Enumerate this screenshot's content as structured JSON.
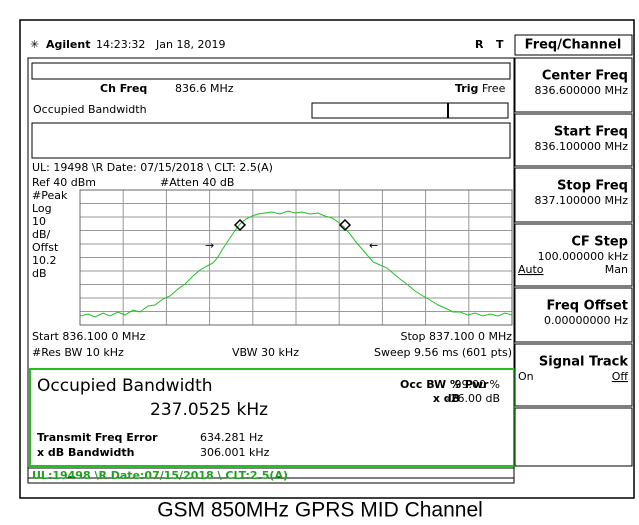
{
  "header": {
    "brand": "Agilent",
    "time": "14:23:32",
    "date": "Jan 18, 2019",
    "r": "R",
    "t": "T",
    "menu": "Freq/Channel"
  },
  "display": {
    "ch_freq_label": "Ch Freq",
    "ch_freq": "836.6 MHz",
    "trig_label": "Trig",
    "trig": "Free",
    "mode": "Occupied Bandwidth",
    "note": "UL: 19498 \\R Date: 07/15/2018 \\ CLT: 2.5(A)",
    "ref": "Ref 40 dBm",
    "atten": "#Atten 40 dB",
    "scale": [
      "#Peak",
      "Log",
      "10",
      "dB/",
      "Offst",
      "10.2",
      "dB"
    ],
    "start": "Start 836.100 0 MHz",
    "stop": "Stop 837.100 0 MHz",
    "res_bw": "#Res BW 10 kHz",
    "vbw": "VBW 30 kHz",
    "sweep": "Sweep 9.56 ms (601 pts)"
  },
  "results": {
    "title": "Occupied Bandwidth",
    "obw": "237.0525 kHz",
    "pwr_label": "Occ BW % Pwr",
    "pwr": "99.00 %",
    "xdb_label": "x dB",
    "xdb": "-26.00 dB",
    "tfe_label": "Transmit Freq Error",
    "tfe": "634.281 Hz",
    "xbw_label": "x dB Bandwidth",
    "xbw": "306.001 kHz"
  },
  "status": "UL:19498 \\R Date:07/15/2018 \\ CLT:2.5(A)",
  "softkeys": [
    {
      "label": "Center Freq",
      "value": "836.600000 MHz"
    },
    {
      "label": "Start Freq",
      "value": "836.100000 MHz"
    },
    {
      "label": "Stop Freq",
      "value": "837.100000 MHz"
    },
    {
      "label": "CF Step",
      "value": "100.000000 kHz",
      "left": "Auto",
      "right": "Man"
    },
    {
      "label": "Freq Offset",
      "value": "0.00000000 Hz"
    },
    {
      "label": "Signal Track",
      "left": "On",
      "right": "Off"
    }
  ],
  "caption": "GSM 850MHz GPRS MID Channel"
}
